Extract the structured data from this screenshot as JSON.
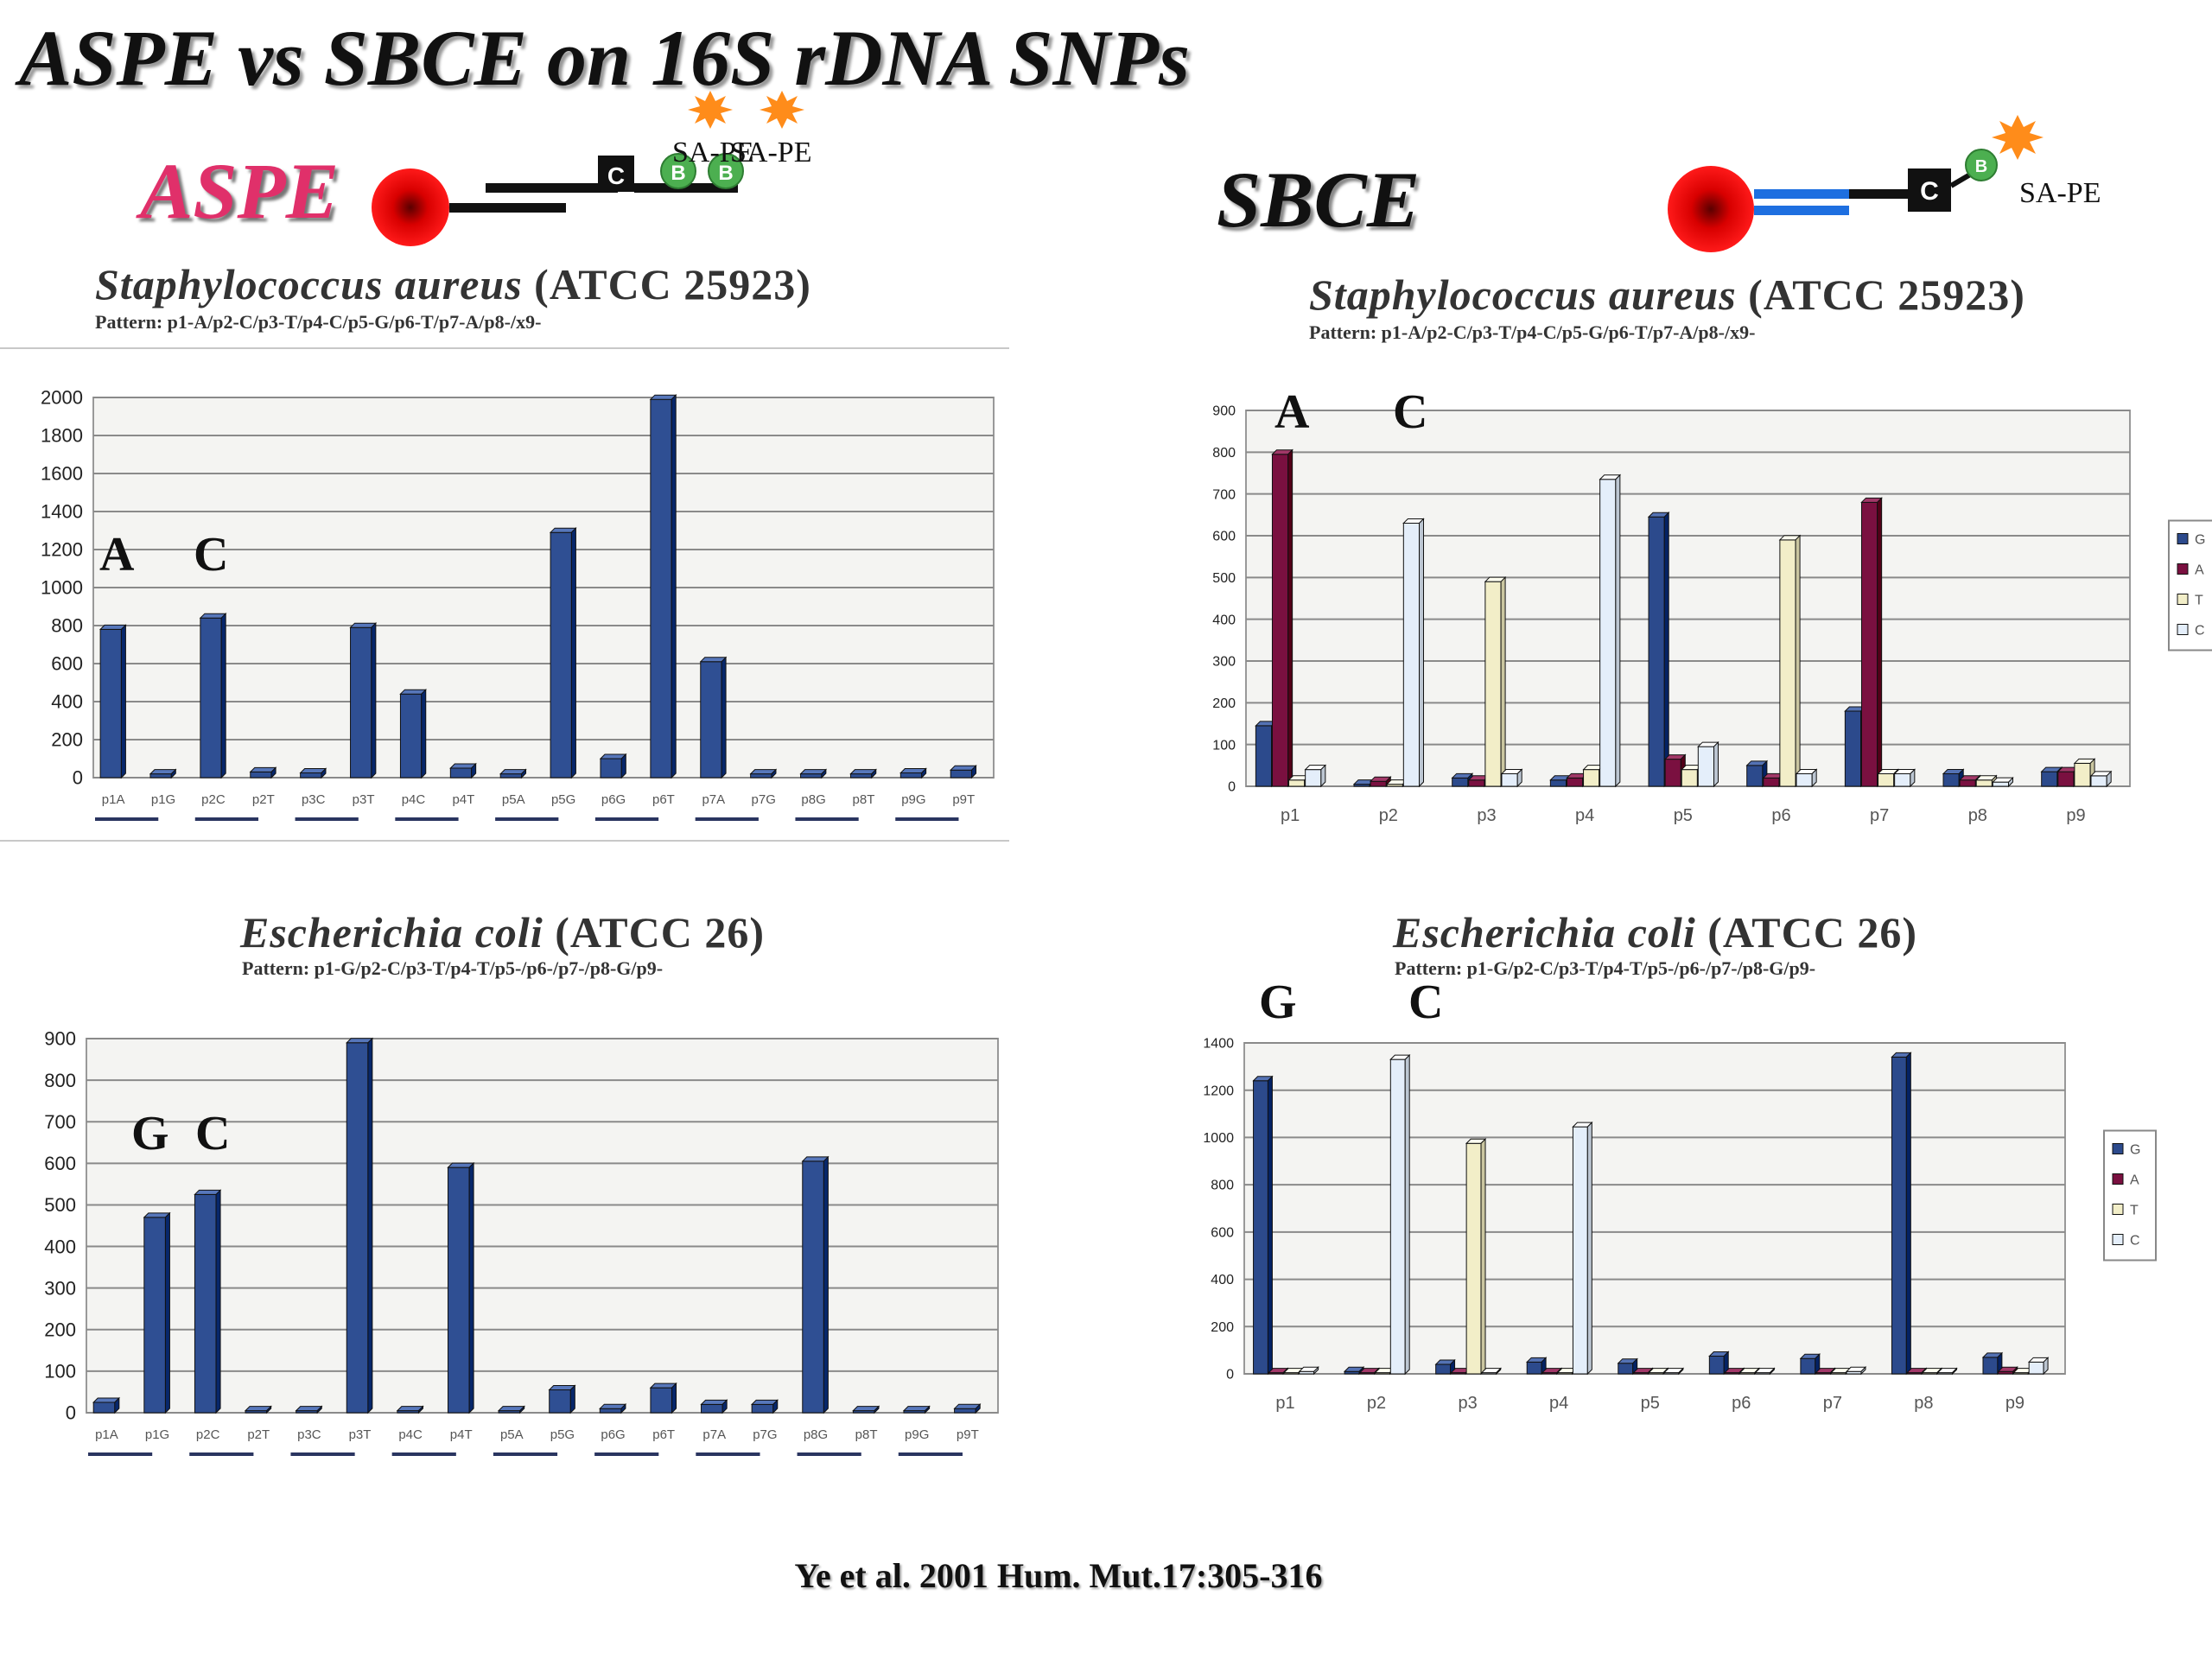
{
  "page": {
    "title": "ASPE vs SBCE on 16S rDNA SNPs",
    "citation": "Ye et al. 2001 Hum. Mut.17:305-316"
  },
  "methods": {
    "aspe": {
      "label": "ASPE",
      "sa_pe_1": "SA-PE",
      "sa_pe_2": "SA-PE",
      "c_box": "C",
      "b1": "B",
      "b2": "B"
    },
    "sbce": {
      "label": "SBCE",
      "sa_pe": "SA-PE",
      "c_box": "C",
      "b1": "B"
    }
  },
  "colors": {
    "G": "#2c4a8c",
    "A": "#7a1040",
    "T": "#f2eec8",
    "C": "#e4eefa",
    "bar": "#2f4f93"
  },
  "chart_data": [
    {
      "type": "bar",
      "title": "Staphylococcus aureus (ATCC 25923)",
      "title_italic": "Staphylococcus aureus",
      "title_rest": " (ATCC 25923)",
      "pattern": "Pattern: p1-A/p2-C/p3-T/p4-C/p5-G/p6-T/p7-A/p8-/x9-",
      "annotations": [
        "A",
        "C"
      ],
      "ylim": [
        0,
        2000
      ],
      "yticks": [
        0,
        200,
        400,
        600,
        800,
        1000,
        1200,
        1400,
        1600,
        1800,
        2000
      ],
      "categories": [
        "p1A",
        "p1G",
        "p2C",
        "p2T",
        "p3C",
        "p3T",
        "p4C",
        "p4T",
        "p5A",
        "p5G",
        "p6G",
        "p6T",
        "p7A",
        "p7G",
        "p8G",
        "p8T",
        "p9G",
        "p9T"
      ],
      "values": [
        780,
        20,
        840,
        30,
        25,
        790,
        440,
        50,
        20,
        1290,
        100,
        1990,
        610,
        20,
        20,
        20,
        25,
        40
      ]
    },
    {
      "type": "bar",
      "title": "Staphylococcus aureus (ATCC 25923)",
      "title_italic": "Staphylococcus aureus",
      "title_rest": " (ATCC 25923)",
      "pattern": "Pattern: p1-A/p2-C/p3-T/p4-C/p5-G/p6-T/p7-A/p8-/x9-",
      "annotations": [
        "A",
        "C"
      ],
      "ylim": [
        0,
        900
      ],
      "yticks": [
        0,
        100,
        200,
        300,
        400,
        500,
        600,
        700,
        800,
        900
      ],
      "categories": [
        "p1",
        "p2",
        "p3",
        "p4",
        "p5",
        "p6",
        "p7",
        "p8",
        "p9"
      ],
      "legend": [
        "G",
        "A",
        "T",
        "C"
      ],
      "legend_position": "right",
      "series": [
        {
          "name": "G",
          "values": [
            145,
            5,
            20,
            15,
            645,
            50,
            180,
            30,
            35
          ]
        },
        {
          "name": "A",
          "values": [
            795,
            12,
            15,
            20,
            65,
            20,
            680,
            15,
            35
          ]
        },
        {
          "name": "T",
          "values": [
            15,
            5,
            490,
            40,
            40,
            590,
            30,
            15,
            55
          ]
        },
        {
          "name": "C",
          "values": [
            40,
            630,
            30,
            735,
            95,
            30,
            30,
            10,
            25
          ]
        }
      ]
    },
    {
      "type": "bar",
      "title": "Escherichia coli (ATCC 26)",
      "title_italic": "Escherichia coli",
      "title_rest": " (ATCC 26)",
      "pattern": "Pattern: p1-G/p2-C/p3-T/p4-T/p5-/p6-/p7-/p8-G/p9-",
      "annotations": [
        "G",
        "C"
      ],
      "ylim": [
        0,
        900
      ],
      "yticks": [
        0,
        100,
        200,
        300,
        400,
        500,
        600,
        700,
        800,
        900
      ],
      "categories": [
        "p1A",
        "p1G",
        "p2C",
        "p2T",
        "p3C",
        "p3T",
        "p4C",
        "p4T",
        "p5A",
        "p5G",
        "p6G",
        "p6T",
        "p7A",
        "p7G",
        "p8G",
        "p8T",
        "p9G",
        "p9T"
      ],
      "values": [
        25,
        470,
        525,
        5,
        5,
        890,
        5,
        590,
        5,
        55,
        10,
        60,
        20,
        20,
        605,
        5,
        5,
        10
      ]
    },
    {
      "type": "bar",
      "title": "Escherichia coli (ATCC 26)",
      "title_italic": "Escherichia coli",
      "title_rest": " (ATCC 26)",
      "pattern": "Pattern: p1-G/p2-C/p3-T/p4-T/p5-/p6-/p7-/p8-G/p9-",
      "annotations": [
        "G",
        "C"
      ],
      "ylim": [
        0,
        1400
      ],
      "yticks": [
        0,
        200,
        400,
        600,
        800,
        1000,
        1200,
        1400
      ],
      "categories": [
        "p1",
        "p2",
        "p3",
        "p4",
        "p5",
        "p6",
        "p7",
        "p8",
        "p9"
      ],
      "legend": [
        "G",
        "A",
        "T",
        "C"
      ],
      "legend_position": "right",
      "series": [
        {
          "name": "G",
          "values": [
            1240,
            10,
            40,
            50,
            45,
            75,
            65,
            1340,
            70
          ]
        },
        {
          "name": "A",
          "values": [
            5,
            5,
            5,
            5,
            5,
            5,
            5,
            5,
            10
          ]
        },
        {
          "name": "T",
          "values": [
            5,
            5,
            975,
            5,
            5,
            5,
            5,
            5,
            5
          ]
        },
        {
          "name": "C",
          "values": [
            10,
            1330,
            5,
            1045,
            5,
            5,
            10,
            5,
            50
          ]
        }
      ]
    }
  ]
}
